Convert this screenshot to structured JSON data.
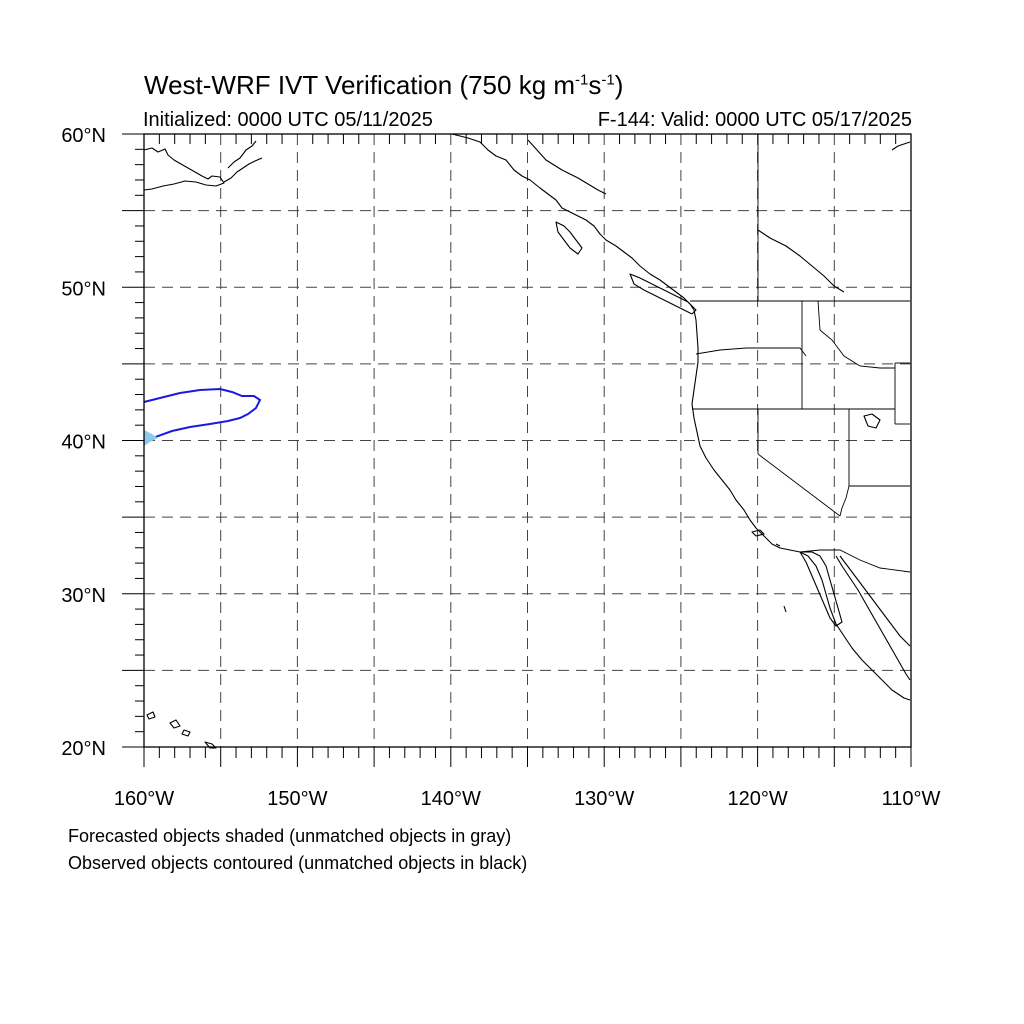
{
  "title": {
    "main": "West-WRF IVT Verification (750 kg m",
    "sup1": "-1",
    "s": "s",
    "sup2": "-1",
    "close": ")"
  },
  "initialized": "Initialized: 0000 UTC 05/11/2025",
  "valid": "F-144: Valid: 0000 UTC 05/17/2025",
  "map": {
    "lon_range": [
      -160,
      -110
    ],
    "lat_range": [
      20,
      60
    ],
    "grid_step_deg": 5,
    "lon_labels": [
      "160°W",
      "150°W",
      "140°W",
      "130°W",
      "120°W",
      "110°W"
    ],
    "lat_labels": [
      "20°N",
      "30°N",
      "40°N",
      "50°N",
      "60°N"
    ],
    "grid": "dashed",
    "colors": {
      "observed_matched": "#1a1ae0",
      "forecast_matched": "#8ec9ea",
      "coastline": "#000000"
    }
  },
  "legend": {
    "line1": "Forecasted objects shaded (unmatched objects in gray)",
    "line2": "Observed objects contoured (unmatched objects in black)"
  }
}
